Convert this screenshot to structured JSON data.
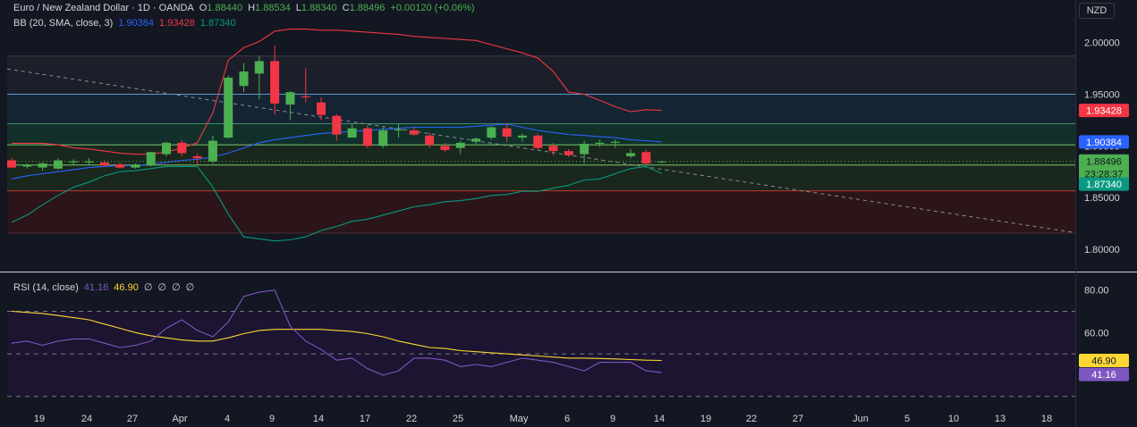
{
  "header": {
    "symbol_title": "Euro / New Zealand Dollar · 1D · OANDA",
    "open_label": "O",
    "open": "1.88440",
    "high_label": "H",
    "high": "1.88534",
    "low_label": "L",
    "low": "1.88340",
    "close_label": "C",
    "close": "1.88496",
    "change": "+0.00120 (+0.06%)",
    "currency_button": "NZD"
  },
  "bb_legend": {
    "title": "BB (20, SMA, close, 3)",
    "basis": "1.90384",
    "upper": "1.93428",
    "lower": "1.87340"
  },
  "rsi_legend": {
    "title": "RSI (14, close)",
    "rsi": "41.16",
    "ma": "46.90",
    "v1": "∅",
    "v2": "∅",
    "v3": "∅",
    "v4": "∅"
  },
  "colors": {
    "up": "#4caf50",
    "down": "#f23645",
    "bb_basis": "#2962ff",
    "bb_upper": "#f23645",
    "bb_lower": "#089981",
    "rsi_line": "#7e57c2",
    "rsi_ma": "#fdd835",
    "grid": "#2a2e39"
  },
  "price_axis": {
    "ticks": [
      "2.00000",
      "1.95000",
      "1.90000",
      "1.85000",
      "1.80000"
    ],
    "tick_values": [
      2.0,
      1.95,
      1.9,
      1.85,
      1.8
    ]
  },
  "price_labels": {
    "upper": "1.93428",
    "basis": "1.90384",
    "close": "1.88496",
    "countdown": "23:28:37",
    "lower": "1.87340"
  },
  "rsi_axis": {
    "ticks": [
      "80.00",
      "60.00"
    ],
    "tick_values": [
      80,
      60
    ],
    "bands": [
      70,
      50,
      30
    ],
    "ma_label": "46.90",
    "rsi_label": "41.16"
  },
  "time_axis": {
    "labels": [
      "19",
      "24",
      "27",
      "Apr",
      "4",
      "9",
      "14",
      "17",
      "22",
      "25",
      "May",
      "6",
      "9",
      "14",
      "19",
      "22",
      "27",
      "Jun",
      "5",
      "10",
      "13",
      "18"
    ]
  },
  "chart_data": {
    "type": "candlestick",
    "instrument": "EUR/NZD",
    "candles": [
      {
        "o": 1.886,
        "h": 1.888,
        "l": 1.879,
        "c": 1.879
      },
      {
        "o": 1.88,
        "h": 1.883,
        "l": 1.878,
        "c": 1.882
      },
      {
        "o": 1.879,
        "h": 1.884,
        "l": 1.876,
        "c": 1.883
      },
      {
        "o": 1.878,
        "h": 1.888,
        "l": 1.877,
        "c": 1.886
      },
      {
        "o": 1.884,
        "h": 1.887,
        "l": 1.882,
        "c": 1.885
      },
      {
        "o": 1.884,
        "h": 1.888,
        "l": 1.882,
        "c": 1.885
      },
      {
        "o": 1.884,
        "h": 1.886,
        "l": 1.88,
        "c": 1.881
      },
      {
        "o": 1.882,
        "h": 1.884,
        "l": 1.878,
        "c": 1.879
      },
      {
        "o": 1.879,
        "h": 1.883,
        "l": 1.878,
        "c": 1.882
      },
      {
        "o": 1.881,
        "h": 1.894,
        "l": 1.88,
        "c": 1.894
      },
      {
        "o": 1.892,
        "h": 1.904,
        "l": 1.89,
        "c": 1.903
      },
      {
        "o": 1.903,
        "h": 1.906,
        "l": 1.89,
        "c": 1.893
      },
      {
        "o": 1.89,
        "h": 1.893,
        "l": 1.882,
        "c": 1.888
      },
      {
        "o": 1.885,
        "h": 1.91,
        "l": 1.883,
        "c": 1.905
      },
      {
        "o": 1.908,
        "h": 1.968,
        "l": 1.907,
        "c": 1.966
      },
      {
        "o": 1.958,
        "h": 1.98,
        "l": 1.952,
        "c": 1.972
      },
      {
        "o": 1.97,
        "h": 1.987,
        "l": 1.945,
        "c": 1.982
      },
      {
        "o": 1.982,
        "h": 1.997,
        "l": 1.93,
        "c": 1.941
      },
      {
        "o": 1.94,
        "h": 1.953,
        "l": 1.925,
        "c": 1.952
      },
      {
        "o": 1.948,
        "h": 1.975,
        "l": 1.942,
        "c": 1.947
      },
      {
        "o": 1.942,
        "h": 1.947,
        "l": 1.925,
        "c": 1.93
      },
      {
        "o": 1.929,
        "h": 1.931,
        "l": 1.905,
        "c": 1.911
      },
      {
        "o": 1.908,
        "h": 1.922,
        "l": 1.908,
        "c": 1.917
      },
      {
        "o": 1.917,
        "h": 1.92,
        "l": 1.898,
        "c": 1.9
      },
      {
        "o": 1.9,
        "h": 1.918,
        "l": 1.898,
        "c": 1.915
      },
      {
        "o": 1.915,
        "h": 1.922,
        "l": 1.908,
        "c": 1.916
      },
      {
        "o": 1.915,
        "h": 1.918,
        "l": 1.91,
        "c": 1.911
      },
      {
        "o": 1.91,
        "h": 1.913,
        "l": 1.898,
        "c": 1.901
      },
      {
        "o": 1.9,
        "h": 1.903,
        "l": 1.894,
        "c": 1.896
      },
      {
        "o": 1.898,
        "h": 1.905,
        "l": 1.892,
        "c": 1.903
      },
      {
        "o": 1.904,
        "h": 1.908,
        "l": 1.902,
        "c": 1.907
      },
      {
        "o": 1.908,
        "h": 1.919,
        "l": 1.906,
        "c": 1.918
      },
      {
        "o": 1.917,
        "h": 1.922,
        "l": 1.904,
        "c": 1.909
      },
      {
        "o": 1.908,
        "h": 1.912,
        "l": 1.904,
        "c": 1.91
      },
      {
        "o": 1.91,
        "h": 1.912,
        "l": 1.896,
        "c": 1.898
      },
      {
        "o": 1.9,
        "h": 1.903,
        "l": 1.891,
        "c": 1.895
      },
      {
        "o": 1.895,
        "h": 1.897,
        "l": 1.889,
        "c": 1.891
      },
      {
        "o": 1.892,
        "h": 1.905,
        "l": 1.883,
        "c": 1.902
      },
      {
        "o": 1.902,
        "h": 1.906,
        "l": 1.899,
        "c": 1.903
      },
      {
        "o": 1.903,
        "h": 1.906,
        "l": 1.898,
        "c": 1.904
      },
      {
        "o": 1.89,
        "h": 1.897,
        "l": 1.888,
        "c": 1.893
      },
      {
        "o": 1.894,
        "h": 1.896,
        "l": 1.882,
        "c": 1.883
      },
      {
        "o": 1.8844,
        "h": 1.88534,
        "l": 1.8834,
        "c": 1.88496
      }
    ],
    "bb_basis": [
      1.868,
      1.871,
      1.873,
      1.875,
      1.877,
      1.879,
      1.88,
      1.881,
      1.881,
      1.882,
      1.884,
      1.886,
      1.887,
      1.889,
      1.893,
      1.898,
      1.903,
      1.906,
      1.908,
      1.91,
      1.912,
      1.913,
      1.914,
      1.915,
      1.916,
      1.917,
      1.918,
      1.918,
      1.918,
      1.918,
      1.919,
      1.92,
      1.921,
      1.918,
      1.915,
      1.913,
      1.911,
      1.91,
      1.909,
      1.908,
      1.906,
      1.905,
      1.9038
    ],
    "bb_upper": [
      1.9025,
      1.9025,
      1.9025,
      1.901,
      1.898,
      1.897,
      1.895,
      1.893,
      1.892,
      1.892,
      1.894,
      1.898,
      1.903,
      1.932,
      1.983,
      1.995,
      2.001,
      2.011,
      2.013,
      2.013,
      2.012,
      2.012,
      2.011,
      2.01,
      2.009,
      2.008,
      2.006,
      2.005,
      2.004,
      2.003,
      2.002,
      1.998,
      1.994,
      1.99,
      1.985,
      1.972,
      1.952,
      1.95,
      1.944,
      1.938,
      1.933,
      1.935,
      1.9343
    ],
    "bb_lower": [
      1.826,
      1.833,
      1.843,
      1.852,
      1.86,
      1.865,
      1.871,
      1.875,
      1.876,
      1.878,
      1.88,
      1.88,
      1.88,
      1.86,
      1.834,
      1.812,
      1.81,
      1.808,
      1.809,
      1.812,
      1.818,
      1.822,
      1.827,
      1.829,
      1.833,
      1.837,
      1.841,
      1.843,
      1.846,
      1.847,
      1.849,
      1.852,
      1.853,
      1.856,
      1.856,
      1.859,
      1.862,
      1.867,
      1.868,
      1.873,
      1.878,
      1.88,
      1.8734
    ],
    "rsi": [
      55,
      56,
      54,
      56,
      57,
      57,
      55,
      53,
      54,
      56,
      62,
      66,
      61,
      58,
      65,
      77,
      79,
      80,
      63,
      56,
      52,
      47,
      48,
      43,
      40,
      42,
      48,
      48,
      47,
      44,
      45,
      44,
      46,
      48,
      47,
      46,
      44,
      42,
      46,
      46,
      46,
      42,
      41.16
    ],
    "rsi_ma": [
      70.0,
      69.5,
      69.0,
      68.0,
      67.0,
      66.0,
      64.0,
      62.0,
      60.0,
      58.5,
      57.5,
      56.5,
      56.0,
      56.0,
      57.5,
      59.5,
      61.0,
      61.5,
      61.5,
      61.5,
      61.5,
      61.0,
      60.5,
      59.5,
      58.0,
      56.0,
      54.5,
      53.0,
      52.5,
      51.5,
      51.0,
      50.5,
      50.0,
      49.5,
      49.0,
      48.5,
      48.0,
      48.0,
      47.8,
      47.6,
      47.3,
      47.0,
      46.9
    ],
    "price_range": [
      1.7818,
      2.017
    ],
    "rsi_range": [
      24,
      87
    ]
  }
}
